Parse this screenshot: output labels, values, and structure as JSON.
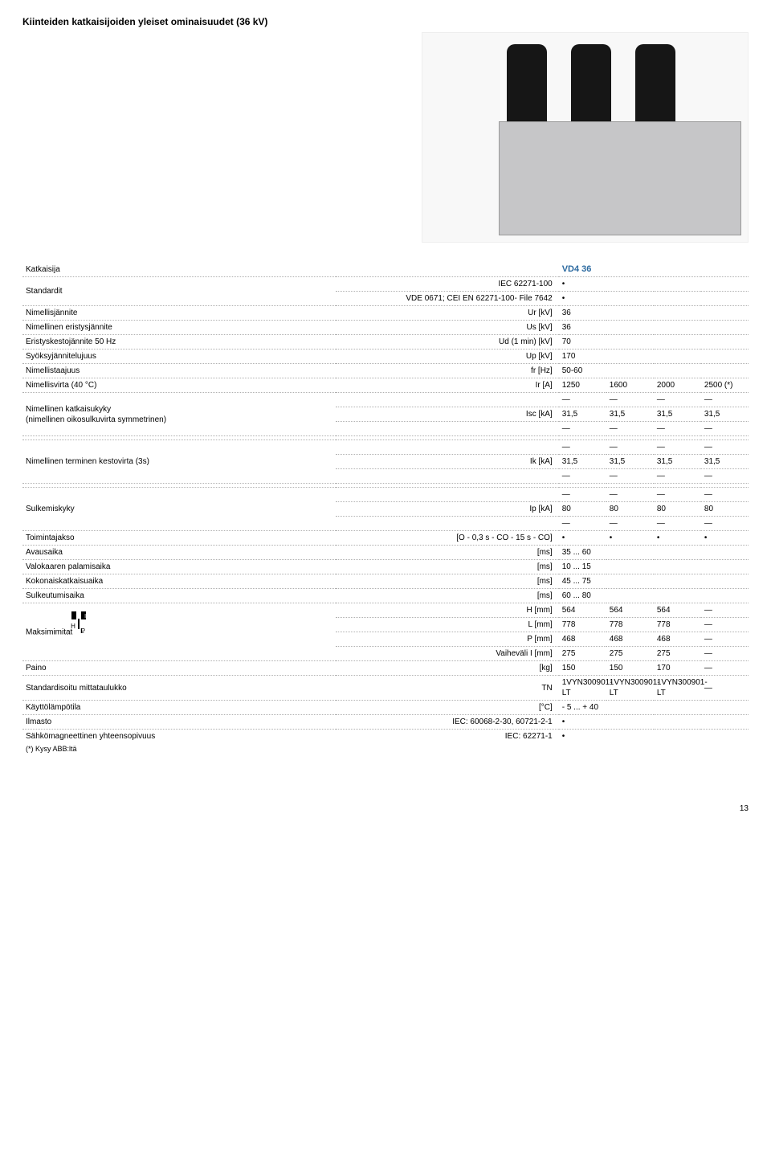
{
  "title": "Kiinteiden katkaisijoiden yleiset ominaisuudet (36 kV)",
  "header": {
    "label": "Katkaisija",
    "model": "VD4 36"
  },
  "rows": {
    "std": {
      "label": "Standardit",
      "l1": "IEC 62271-100",
      "v1": "•",
      "l2": "VDE 0671; CEI EN 62271-100- File 7642",
      "v2": "•"
    },
    "ur": {
      "label": "Nimellisjännite",
      "unit": "Ur [kV]",
      "val": "36"
    },
    "us": {
      "label": "Nimellinen eristysjännite",
      "unit": "Us [kV]",
      "val": "36"
    },
    "ud": {
      "label": "Eristyskestojännite 50 Hz",
      "unit": "Ud (1 min) [kV]",
      "val": "70"
    },
    "up": {
      "label": "Syöksyjännitelujuus",
      "unit": "Up [kV]",
      "val": "170"
    },
    "fr": {
      "label": "Nimellistaajuus",
      "unit": "fr [Hz]",
      "val": "50-60"
    },
    "ir": {
      "label": "Nimellisvirta (40 °C)",
      "unit": "Ir [A]",
      "c1": "1250",
      "c2": "1600",
      "c3": "2000",
      "c4": "2500 (*)"
    },
    "isc": {
      "label": "Nimellinen katkaisukyky\n(nimellinen oikosulkuvirta symmetrinen)",
      "unit": "Isc [kA]",
      "c1": "31,5",
      "c2": "31,5",
      "c3": "31,5",
      "c4": "31,5"
    },
    "ik": {
      "label": "Nimellinen terminen kestovirta (3s)",
      "unit": "Ik [kA]",
      "c1": "31,5",
      "c2": "31,5",
      "c3": "31,5",
      "c4": "31,5"
    },
    "ip": {
      "label": "Sulkemiskyky",
      "unit": "Ip [kA]",
      "c1": "80",
      "c2": "80",
      "c3": "80",
      "c4": "80"
    },
    "seq": {
      "label": "Toimintajakso",
      "unit": "[O - 0,3 s - CO - 15 s - CO]",
      "c1": "•",
      "c2": "•",
      "c3": "•",
      "c4": "•"
    },
    "open": {
      "label": "Avausaika",
      "unit": "[ms]",
      "val": "35 ... 60"
    },
    "arc": {
      "label": "Valokaaren palamisaika",
      "unit": "[ms]",
      "val": "10 ... 15"
    },
    "total": {
      "label": "Kokonaiskatkaisuaika",
      "unit": "[ms]",
      "val": "45 ... 75"
    },
    "close": {
      "label": "Sulkeutumisaika",
      "unit": "[ms]",
      "val": "60 ... 80"
    },
    "dims": {
      "label": "Maksimimitat",
      "H": {
        "unit": "H [mm]",
        "c1": "564",
        "c2": "564",
        "c3": "564",
        "c4": "—"
      },
      "L": {
        "unit": "L [mm]",
        "c1": "778",
        "c2": "778",
        "c3": "778",
        "c4": "—"
      },
      "P": {
        "unit": "P [mm]",
        "c1": "468",
        "c2": "468",
        "c3": "468",
        "c4": "—"
      },
      "I": {
        "unit": "Vaiheväli I  [mm]",
        "c1": "275",
        "c2": "275",
        "c3": "275",
        "c4": "—"
      }
    },
    "weight": {
      "label": "Paino",
      "unit": "[kg]",
      "c1": "150",
      "c2": "150",
      "c3": "170",
      "c4": "—"
    },
    "tn": {
      "label": "Standardisoitu mittataulukko",
      "unit": "TN",
      "c1": "1VYN300901-LT",
      "c2": "1VYN300901-LT",
      "c3": "1VYN300901-LT",
      "c4": "—"
    },
    "temp": {
      "label": "Käyttölämpötila",
      "unit": "[°C]",
      "val": "- 5 ... + 40"
    },
    "climate": {
      "label": "Ilmasto",
      "unit": "IEC: 60068-2-30, 60721-2-1",
      "val": "•"
    },
    "emc": {
      "label": "Sähkömagneettinen yhteensopivuus",
      "unit": "IEC: 62271-1",
      "val": "•"
    }
  },
  "footnote": "(*) Kysy ABB:ltä",
  "pagenum": "13"
}
